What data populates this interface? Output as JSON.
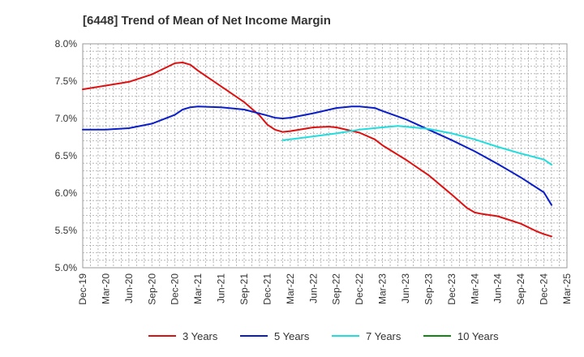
{
  "chart_data": {
    "type": "line",
    "title": "[6448]  Trend of Mean of Net Income Margin",
    "xlabel": "",
    "ylabel": "",
    "x_ticks": [
      "Dec-19",
      "Mar-20",
      "Jun-20",
      "Sep-20",
      "Dec-20",
      "Mar-21",
      "Jun-21",
      "Sep-21",
      "Dec-21",
      "Mar-22",
      "Jun-22",
      "Sep-22",
      "Dec-22",
      "Mar-23",
      "Jun-23",
      "Sep-23",
      "Dec-23",
      "Mar-24",
      "Jun-24",
      "Sep-24",
      "Dec-24",
      "Mar-25"
    ],
    "y_ticks": [
      "5.0%",
      "5.5%",
      "6.0%",
      "6.5%",
      "7.0%",
      "7.5%",
      "8.0%"
    ],
    "ylim": [
      5.0,
      8.0
    ],
    "grid": true,
    "legend_position": "bottom",
    "series": [
      {
        "name": "3 Years",
        "color": "#dd1111",
        "points": [
          [
            "Dec-19",
            7.39
          ],
          [
            "Mar-20",
            7.44
          ],
          [
            "Jun-20",
            7.49
          ],
          [
            "Sep-20",
            7.59
          ],
          [
            "Nov-20",
            7.69
          ],
          [
            "Dec-20",
            7.74
          ],
          [
            "Jan-21",
            7.75
          ],
          [
            "Feb-21",
            7.72
          ],
          [
            "Mar-21",
            7.64
          ],
          [
            "Jun-21",
            7.43
          ],
          [
            "Sep-21",
            7.22
          ],
          [
            "Nov-21",
            7.04
          ],
          [
            "Dec-21",
            6.92
          ],
          [
            "Jan-22",
            6.85
          ],
          [
            "Feb-22",
            6.82
          ],
          [
            "Mar-22",
            6.83
          ],
          [
            "Jun-22",
            6.88
          ],
          [
            "Aug-22",
            6.89
          ],
          [
            "Sep-22",
            6.88
          ],
          [
            "Dec-22",
            6.81
          ],
          [
            "Feb-23",
            6.72
          ],
          [
            "Mar-23",
            6.64
          ],
          [
            "Jun-23",
            6.45
          ],
          [
            "Sep-23",
            6.24
          ],
          [
            "Dec-23",
            5.98
          ],
          [
            "Feb-24",
            5.8
          ],
          [
            "Mar-24",
            5.74
          ],
          [
            "Apr-24",
            5.72
          ],
          [
            "Jun-24",
            5.69
          ],
          [
            "Sep-24",
            5.59
          ],
          [
            "Nov-24",
            5.49
          ],
          [
            "Dec-24",
            5.45
          ],
          [
            "Jan-25",
            5.42
          ]
        ]
      },
      {
        "name": "5 Years",
        "color": "#0a1ec8",
        "points": [
          [
            "Dec-19",
            6.85
          ],
          [
            "Mar-20",
            6.85
          ],
          [
            "Jun-20",
            6.87
          ],
          [
            "Sep-20",
            6.93
          ],
          [
            "Dec-20",
            7.05
          ],
          [
            "Jan-21",
            7.12
          ],
          [
            "Feb-21",
            7.15
          ],
          [
            "Mar-21",
            7.16
          ],
          [
            "Jun-21",
            7.15
          ],
          [
            "Sep-21",
            7.12
          ],
          [
            "Dec-21",
            7.04
          ],
          [
            "Jan-22",
            7.01
          ],
          [
            "Feb-22",
            7.0
          ],
          [
            "Mar-22",
            7.01
          ],
          [
            "Jun-22",
            7.07
          ],
          [
            "Sep-22",
            7.14
          ],
          [
            "Nov-22",
            7.16
          ],
          [
            "Dec-22",
            7.16
          ],
          [
            "Feb-23",
            7.14
          ],
          [
            "Mar-23",
            7.1
          ],
          [
            "Jun-23",
            6.99
          ],
          [
            "Sep-23",
            6.85
          ],
          [
            "Dec-23",
            6.71
          ],
          [
            "Mar-24",
            6.56
          ],
          [
            "Jun-24",
            6.39
          ],
          [
            "Sep-24",
            6.21
          ],
          [
            "Dec-24",
            6.01
          ],
          [
            "Jan-25",
            5.84
          ]
        ]
      },
      {
        "name": "7 Years",
        "color": "#22dddd",
        "points": [
          [
            "Feb-22",
            6.71
          ],
          [
            "Mar-22",
            6.72
          ],
          [
            "Jun-22",
            6.76
          ],
          [
            "Sep-22",
            6.8
          ],
          [
            "Dec-22",
            6.85
          ],
          [
            "Mar-23",
            6.88
          ],
          [
            "May-23",
            6.9
          ],
          [
            "Jun-23",
            6.89
          ],
          [
            "Sep-23",
            6.86
          ],
          [
            "Dec-23",
            6.8
          ],
          [
            "Mar-24",
            6.72
          ],
          [
            "Jun-24",
            6.62
          ],
          [
            "Sep-24",
            6.53
          ],
          [
            "Dec-24",
            6.45
          ],
          [
            "Jan-25",
            6.38
          ]
        ]
      },
      {
        "name": "10 Years",
        "color": "#118811",
        "points": []
      }
    ]
  }
}
